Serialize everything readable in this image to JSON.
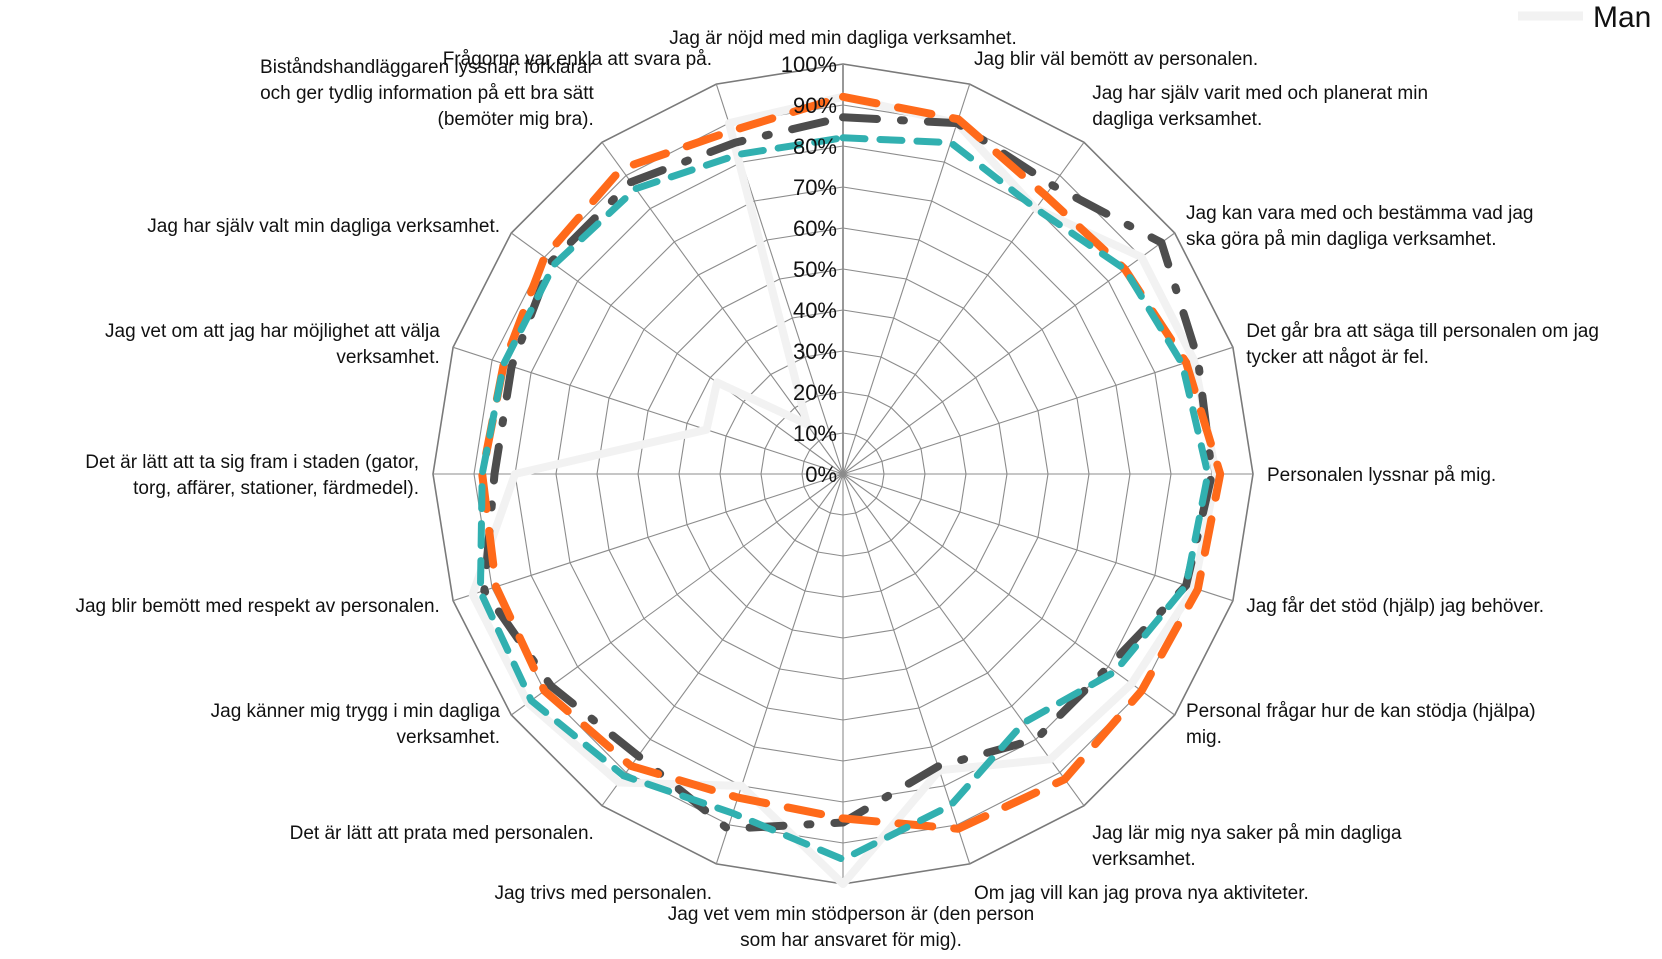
{
  "chart_data": {
    "type": "radar",
    "title": "",
    "rlim": [
      0,
      100
    ],
    "ticks": [
      "0%",
      "10%",
      "20%",
      "30%",
      "40%",
      "50%",
      "60%",
      "70%",
      "80%",
      "90%",
      "100%"
    ],
    "grid": true,
    "legend_position": "top-right",
    "categories": [
      [
        "Jag är nöjd med min dagliga verksamhet."
      ],
      [
        "Jag blir väl bemött av personalen."
      ],
      [
        "Jag har själv varit med och planerat min",
        "dagliga verksamhet."
      ],
      [
        "Jag kan vara med och bestämma vad jag",
        "ska göra på min dagliga verksamhet."
      ],
      [
        "Det går bra att säga till personalen om jag",
        "tycker att något är fel."
      ],
      [
        "Personalen lyssnar på mig."
      ],
      [
        "Jag får det stöd (hjälp) jag behöver."
      ],
      [
        "Personal frågar hur de kan stödja (hjälpa)",
        "mig."
      ],
      [
        "Jag lär mig nya saker på min dagliga",
        "verksamhet."
      ],
      [
        "Om jag vill kan jag prova nya aktiviteter."
      ],
      [
        "Jag vet vem min stödperson är (den person",
        "som har ansvaret för mig)."
      ],
      [
        "Jag trivs med personalen."
      ],
      [
        "Det är lätt att prata med personalen."
      ],
      [
        "Jag känner mig trygg i min dagliga",
        "verksamhet."
      ],
      [
        "Jag blir bemött med respekt av personalen."
      ],
      [
        "Det är lätt att ta sig fram i staden (gator,",
        "torg, affärer, stationer, färdmedel)."
      ],
      [
        "Jag vet om att jag har möjlighet att välja",
        "verksamhet."
      ],
      [
        "Jag har själv valt min dagliga verksamhet."
      ],
      [
        "Biståndshandläggaren lyssnar, förklarar",
        "och ger tydlig information på ett bra sätt",
        "(bemöter mig bra)."
      ],
      [
        "Frågorna var enkla att svara på."
      ]
    ],
    "series": [
      {
        "name": "Man",
        "color": "#f2f2f2",
        "dash": "solid",
        "values": [
          92,
          90,
          80,
          90,
          90,
          91,
          90,
          87,
          86,
          76,
          100,
          80,
          93,
          95,
          95,
          80,
          35,
          38,
          15,
          90
        ]
      },
      {
        "name": "",
        "color": "#4d4d4d",
        "dash": "dash-dot",
        "values": [
          87,
          90,
          87,
          96,
          91,
          90,
          88,
          80,
          80,
          75,
          85,
          91,
          85,
          88,
          92,
          85,
          85,
          88,
          88,
          85
        ]
      },
      {
        "name": "",
        "color": "#ff6a1a",
        "dash": "long-dash",
        "values": [
          92,
          91,
          84,
          85,
          88,
          92,
          91,
          90,
          92,
          91,
          84,
          83,
          88,
          90,
          89,
          88,
          87,
          90,
          92,
          88
        ]
      },
      {
        "name": "",
        "color": "#31b0b0",
        "dash": "dash",
        "values": [
          82,
          85,
          80,
          85,
          87,
          89,
          88,
          82,
          75,
          85,
          94,
          87,
          91,
          94,
          93,
          88,
          87,
          87,
          86,
          82
        ]
      }
    ]
  }
}
